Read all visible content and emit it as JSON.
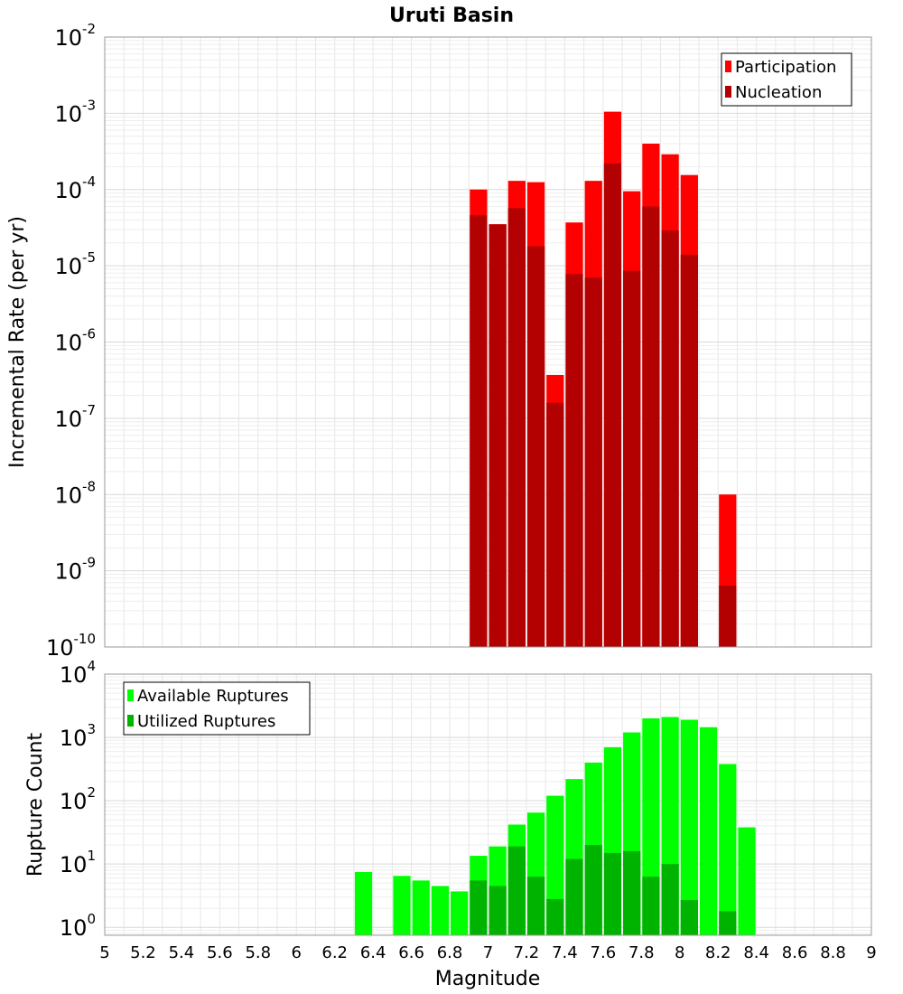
{
  "chart_data": [
    {
      "type": "bar",
      "title": "Uruti Basin",
      "xlabel": "",
      "ylabel": "Incremental Rate (per yr)",
      "scale_y": "log",
      "ylim": [
        1e-10,
        0.01
      ],
      "xlim": [
        5,
        9
      ],
      "grid": true,
      "legend_position": "top-right",
      "colors": {
        "Participation": "#ff0000",
        "Nucleation": "#b30000"
      },
      "y_ticks": [
        {
          "base": "10",
          "exp": "-10"
        },
        {
          "base": "10",
          "exp": "-9"
        },
        {
          "base": "10",
          "exp": "-8"
        },
        {
          "base": "10",
          "exp": "-7"
        },
        {
          "base": "10",
          "exp": "-6"
        },
        {
          "base": "10",
          "exp": "-5"
        },
        {
          "base": "10",
          "exp": "-4"
        },
        {
          "base": "10",
          "exp": "-3"
        },
        {
          "base": "10",
          "exp": "-2"
        }
      ],
      "x": [
        6.95,
        7.05,
        7.15,
        7.25,
        7.35,
        7.45,
        7.55,
        7.65,
        7.75,
        7.85,
        7.95,
        8.05,
        8.15,
        8.25
      ],
      "series": [
        {
          "name": "Participation",
          "values": [
            0.0001,
            3.5e-05,
            0.00013,
            0.000125,
            3.7e-07,
            3.7e-05,
            0.00013,
            0.00105,
            9.5e-05,
            0.0004,
            0.00029,
            0.000155,
            null,
            1e-08
          ]
        },
        {
          "name": "Nucleation",
          "values": [
            4.6e-05,
            3.5e-05,
            5.7e-05,
            1.8e-05,
            1.6e-07,
            7.8e-06,
            7e-06,
            0.00022,
            8.6e-06,
            6e-05,
            2.9e-05,
            1.4e-05,
            null,
            6.4e-10
          ]
        }
      ]
    },
    {
      "type": "bar",
      "title": "",
      "xlabel": "Magnitude",
      "ylabel": "Rupture Count",
      "scale_y": "log",
      "ylim": [
        0.75,
        10000
      ],
      "xlim": [
        5,
        9
      ],
      "grid": true,
      "legend_position": "top-left",
      "colors": {
        "Available Ruptures": "#00ff00",
        "Utilized Ruptures": "#00b300"
      },
      "y_ticks": [
        {
          "base": "10",
          "exp": "0"
        },
        {
          "base": "10",
          "exp": "1"
        },
        {
          "base": "10",
          "exp": "2"
        },
        {
          "base": "10",
          "exp": "3"
        },
        {
          "base": "10",
          "exp": "4"
        }
      ],
      "x_tick_labels": [
        "5",
        "5.2",
        "5.4",
        "5.6",
        "5.8",
        "6",
        "6.2",
        "6.4",
        "6.6",
        "6.8",
        "7",
        "7.2",
        "7.4",
        "7.6",
        "7.8",
        "8",
        "8.2",
        "8.4",
        "8.6",
        "8.8",
        "9"
      ],
      "x": [
        6.35,
        6.45,
        6.55,
        6.65,
        6.75,
        6.85,
        6.95,
        7.05,
        7.15,
        7.25,
        7.35,
        7.45,
        7.55,
        7.65,
        7.75,
        7.85,
        7.95,
        8.05,
        8.15,
        8.25,
        8.35
      ],
      "series": [
        {
          "name": "Available Ruptures",
          "values": [
            7.5,
            null,
            6.5,
            5.5,
            4.5,
            3.7,
            13.5,
            19,
            42,
            65,
            120,
            220,
            400,
            700,
            1200,
            2000,
            2100,
            1900,
            1450,
            380,
            38
          ]
        },
        {
          "name": "Utilized Ruptures",
          "values": [
            null,
            null,
            null,
            null,
            null,
            null,
            5.5,
            4.5,
            19,
            6.3,
            2.8,
            12,
            20,
            15,
            16,
            6.3,
            10,
            2.7,
            null,
            1.8,
            null
          ]
        }
      ]
    }
  ]
}
